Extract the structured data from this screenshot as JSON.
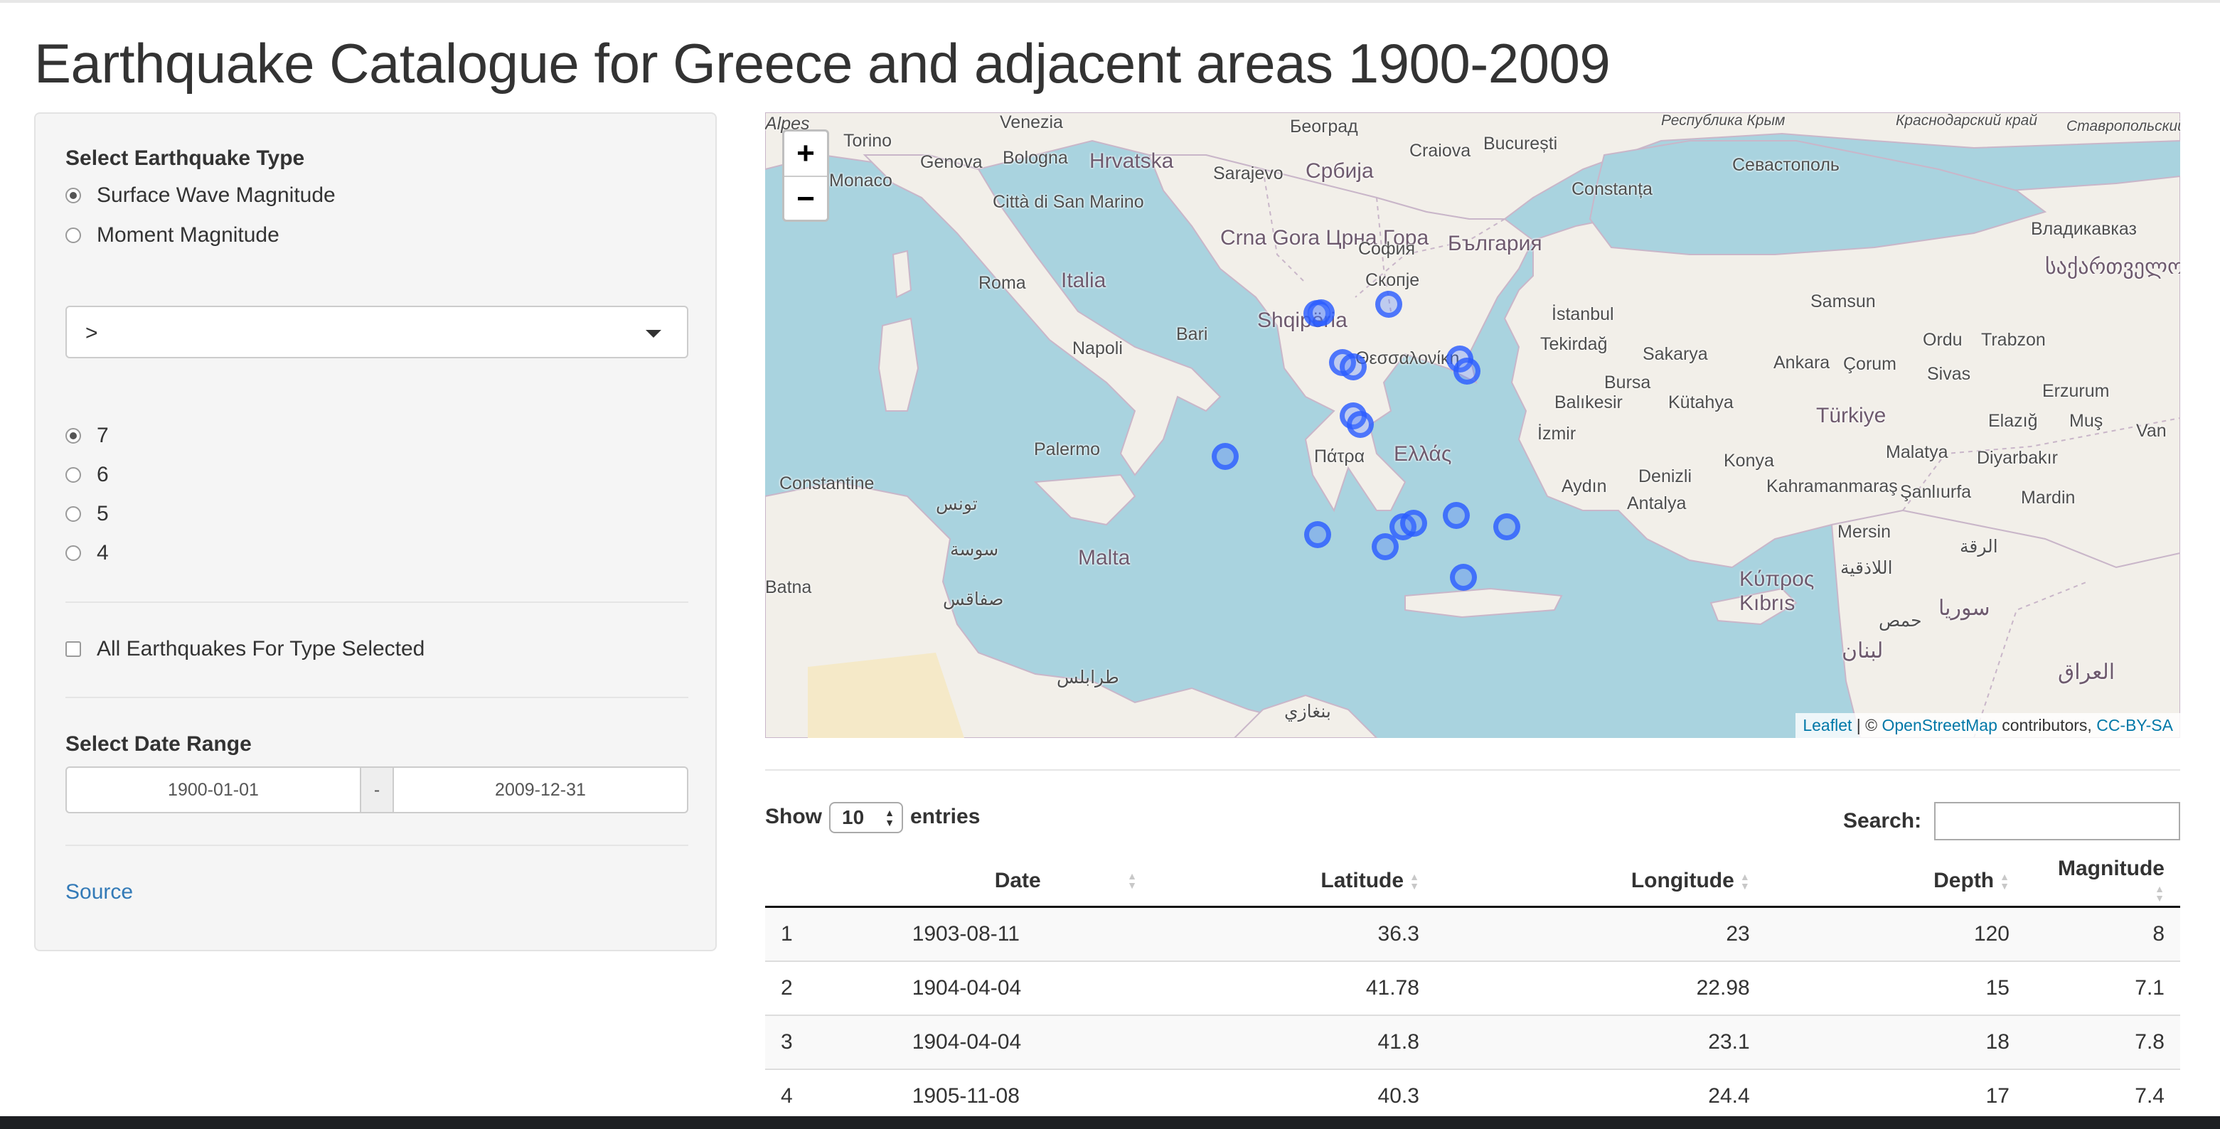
{
  "page": {
    "title": "Earthquake Catalogue for Greece and adjacent areas 1900-2009"
  },
  "sidebar": {
    "type_label": "Select Earthquake Type",
    "type_options": [
      {
        "label": "Surface Wave Magnitude",
        "checked": true
      },
      {
        "label": "Moment Magnitude",
        "checked": false
      }
    ],
    "operator_value": ">",
    "magnitude_options": [
      {
        "label": "7",
        "checked": true
      },
      {
        "label": "6",
        "checked": false
      },
      {
        "label": "5",
        "checked": false
      },
      {
        "label": "4",
        "checked": false
      }
    ],
    "all_checkbox_label": "All Earthquakes For Type Selected",
    "all_checkbox_checked": false,
    "date_label": "Select Date Range",
    "date_start": "1900-01-01",
    "date_sep": "-",
    "date_end": "2009-12-31",
    "source_link": "Source"
  },
  "map": {
    "zoom_in": "+",
    "zoom_out": "−",
    "attribution": {
      "leaflet": "Leaflet",
      "sep": " | © ",
      "osm": "OpenStreetMap",
      "contrib": " contributors, ",
      "license": "CC-BY-SA"
    },
    "labels": {
      "alpes": "Alpes",
      "torino": "Torino",
      "venezia": "Venezia",
      "genova": "Genova",
      "bologna": "Bologna",
      "monaco": "Monaco",
      "hrvatska": "Hrvatska",
      "sarajevo": "Sarajevo",
      "srbija": "Србија",
      "beograd": "Београд",
      "craiova": "Craiova",
      "bucuresti": "București",
      "constanta": "Constanța",
      "krym": "Республика Крым",
      "krasnodar": "Краснодарский край",
      "stavropol": "Ставропольский край",
      "sevastopol": "Севастополь",
      "sanmarino": "Città di San Marino",
      "crnagora": "Crna Gora Црна Гора",
      "sofia": "София",
      "skopje": "Скопје",
      "bulgaria": "България",
      "istanbul": "İstanbul",
      "vladikavkaz": "Владикавказ",
      "sakartvelo": "საქართველო",
      "roma": "Roma",
      "italia": "Italia",
      "shqiperia": "Shqipëria",
      "tekirdag": "Tekirdağ",
      "samsun": "Samsun",
      "ordu": "Ordu",
      "trabzon": "Trabzon",
      "napoli": "Napoli",
      "bari": "Bari",
      "thessaloniki": "Θεσσαλονίκη",
      "sakarya": "Sakarya",
      "bursa": "Bursa",
      "ankara": "Ankara",
      "corum": "Çorum",
      "sivas": "Sivas",
      "erzurum": "Erzurum",
      "balikesir": "Balıkesir",
      "kutahya": "Kütahya",
      "turkiye": "Türkiye",
      "elazig": "Elazığ",
      "mus": "Muş",
      "van": "Van",
      "palermo": "Palermo",
      "patra": "Πάτρα",
      "ellas": "Ελλάς",
      "izmir": "İzmir",
      "konya": "Konya",
      "malatya": "Malatya",
      "diyarbakir": "Diyarbakır",
      "constantine": "Constantine",
      "tunis": "تونس",
      "aydin": "Aydın",
      "denizli": "Denizli",
      "kahramanmaras": "Kahramanmaraş",
      "sanliurfa": "Şanlıurfa",
      "mardin": "Mardin",
      "antalya": "Antalya",
      "mersin": "Mersin",
      "sousse": "سوسة",
      "malta": "Malta",
      "kypros": "Κύπρος Kıbrıs",
      "raqqa": "الرقة",
      "batna": "Batna",
      "sfax": "صفاقس",
      "latakia": "اللاذقية",
      "suria": "سوريا",
      "hims": "حمص",
      "lubnan": "لبنان",
      "iraq": "العراق",
      "tripoli": "طرابلس",
      "benghazi": "بنغازي"
    },
    "quakes": [
      {
        "lat": 41.78,
        "lon": 22.98
      },
      {
        "lat": 41.8,
        "lon": 23.1
      },
      {
        "lat": 42.0,
        "lon": 25.0
      },
      {
        "lat": 40.6,
        "lon": 23.7
      },
      {
        "lat": 40.5,
        "lon": 24.0
      },
      {
        "lat": 40.7,
        "lon": 27.0
      },
      {
        "lat": 40.4,
        "lon": 27.2
      },
      {
        "lat": 39.3,
        "lon": 24.0
      },
      {
        "lat": 39.1,
        "lon": 24.2
      },
      {
        "lat": 38.3,
        "lon": 20.4
      },
      {
        "lat": 36.3,
        "lon": 23.0
      },
      {
        "lat": 36.0,
        "lon": 24.9
      },
      {
        "lat": 36.5,
        "lon": 25.4
      },
      {
        "lat": 36.6,
        "lon": 25.7
      },
      {
        "lat": 36.8,
        "lon": 26.9
      },
      {
        "lat": 36.5,
        "lon": 28.3
      },
      {
        "lat": 35.2,
        "lon": 27.1
      }
    ]
  },
  "table": {
    "show_label": "Show",
    "page_length": "10",
    "entries_label": "entries",
    "search_label": "Search:",
    "columns": [
      "",
      "Date",
      "Latitude",
      "Longitude",
      "Depth",
      "Magnitude"
    ],
    "rows": [
      [
        "1",
        "1903-08-11",
        "36.3",
        "23",
        "120",
        "8"
      ],
      [
        "2",
        "1904-04-04",
        "41.78",
        "22.98",
        "15",
        "7.1"
      ],
      [
        "3",
        "1904-04-04",
        "41.8",
        "23.1",
        "18",
        "7.8"
      ],
      [
        "4",
        "1905-11-08",
        "40.3",
        "24.4",
        "17",
        "7.4"
      ]
    ]
  },
  "colors": {
    "link": "#337ab7",
    "sea": "#a9d3df",
    "land": "#f2efe9",
    "marker": "#2d5aff"
  }
}
